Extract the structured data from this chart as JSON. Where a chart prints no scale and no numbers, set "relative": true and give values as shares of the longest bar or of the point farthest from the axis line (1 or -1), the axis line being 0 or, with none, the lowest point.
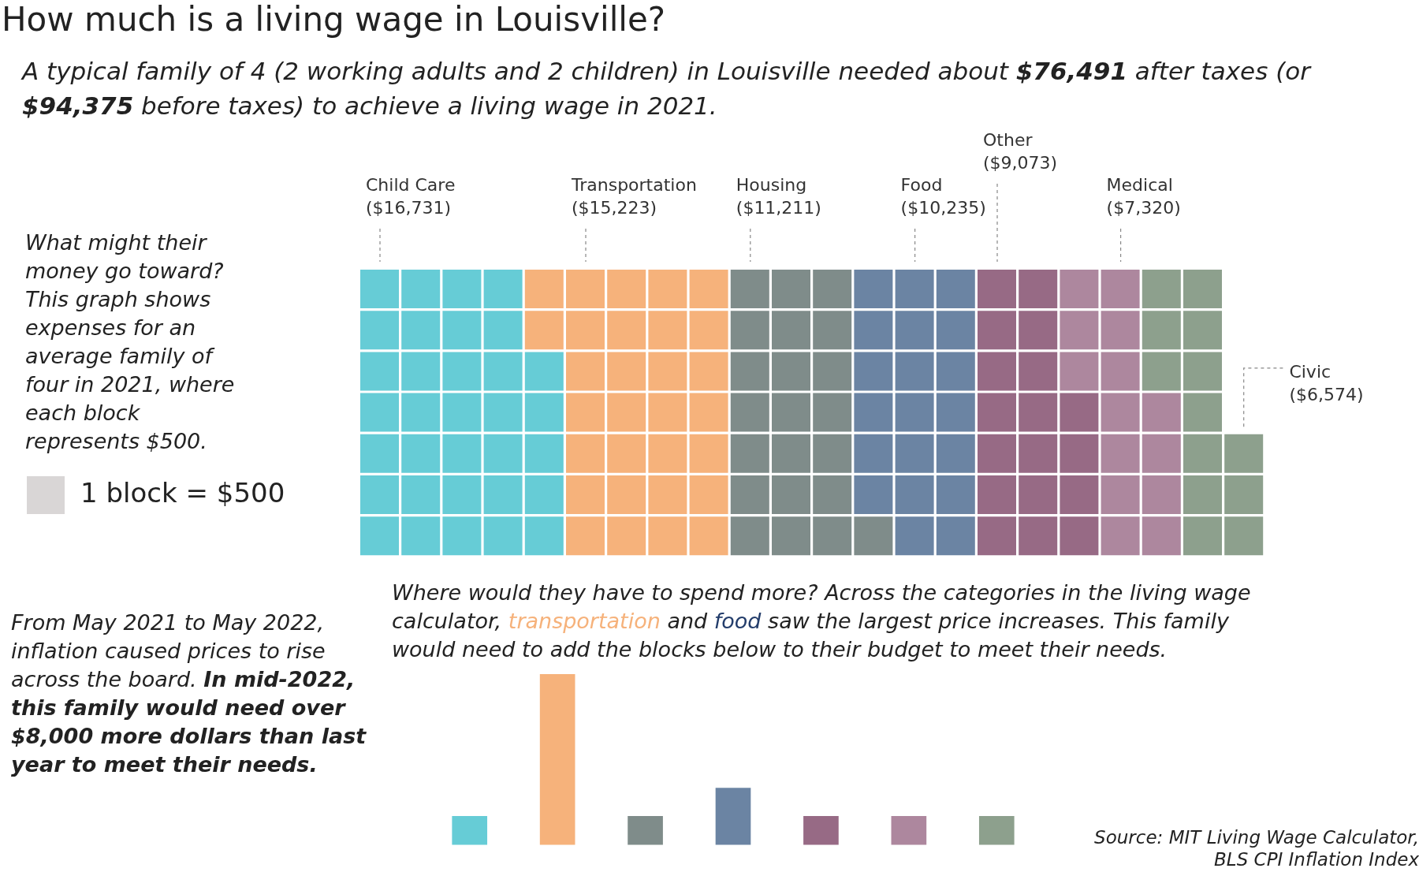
{
  "chart_data": [
    {
      "type": "other",
      "title": "How much is a living wage in Louisville?",
      "subtitle": "A typical family of 4 (2 working adults and 2 children) in Louisville needed about $76,491 after taxes (or $94,375 before taxes) to achieve a living wage in 2021.",
      "categories": [
        "Child Care",
        "Transportation",
        "Housing",
        "Food",
        "Other",
        "Medical",
        "Civic"
      ],
      "colors": [
        "#66ccd6",
        "#f6b27b",
        "#7f8c8a",
        "#6b84a3",
        "#976a85",
        "#ad879e",
        "#8da08d"
      ],
      "values": [
        16731,
        15223,
        11211,
        10235,
        9073,
        7320,
        6574
      ],
      "value_labels": [
        "($16,731)",
        "($15,223)",
        "($11,211)",
        "($10,235)",
        "($9,073)",
        "($7,320)",
        "($6,574)"
      ],
      "annotations": [
        "What might their money go toward? This graph shows expenses for an average family of four in 2021, where each block represents $500.",
        "1 block = $500"
      ]
    },
    {
      "type": "bar",
      "relative": true,
      "categories": [
        null,
        null,
        null,
        null,
        null,
        null,
        null
      ],
      "colors": [
        "#66ccd6",
        "#f6b27b",
        "#7f8c8a",
        "#6b84a3",
        "#976a85",
        "#ad879e",
        "#8da08d"
      ],
      "values": [
        0.167,
        1,
        0.167,
        0.333,
        0.167,
        0.167,
        0.167
      ],
      "annotations": [
        "From May 2021 to May 2022, inflation caused prices to rise across the board.",
        "In mid-2022, this family would need over $8,000 more dollars than last year to meet their needs.",
        "Where would they have to spend more? Across the categories in the living wage calculator, transportation and food saw the largest price increases. This family would need to add the blocks below to their budget to meet their needs.",
        "Source: MIT Living Wage Calculator, BLS CPI Inflation Index"
      ]
    }
  ]
}
